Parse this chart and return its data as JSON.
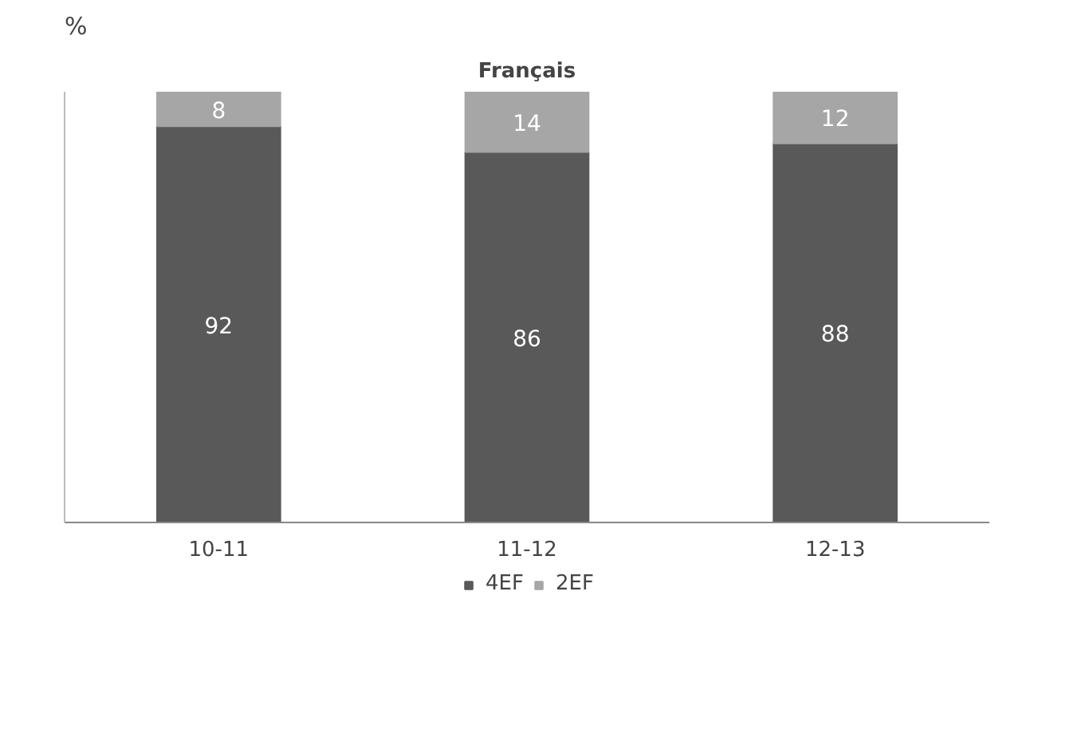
{
  "chart_data": {
    "type": "bar",
    "title": "Français",
    "ylabel": "%",
    "categories": [
      "10-11",
      "11-12",
      "12-13"
    ],
    "stacked": true,
    "ylim": [
      0,
      100
    ],
    "data_labels": true,
    "legend": "bottom",
    "series": [
      {
        "name": "4EF",
        "color": "#595959",
        "values": [
          92,
          86,
          88
        ]
      },
      {
        "name": "2EF",
        "color": "#a6a6a6",
        "values": [
          8,
          14,
          12
        ]
      }
    ]
  }
}
